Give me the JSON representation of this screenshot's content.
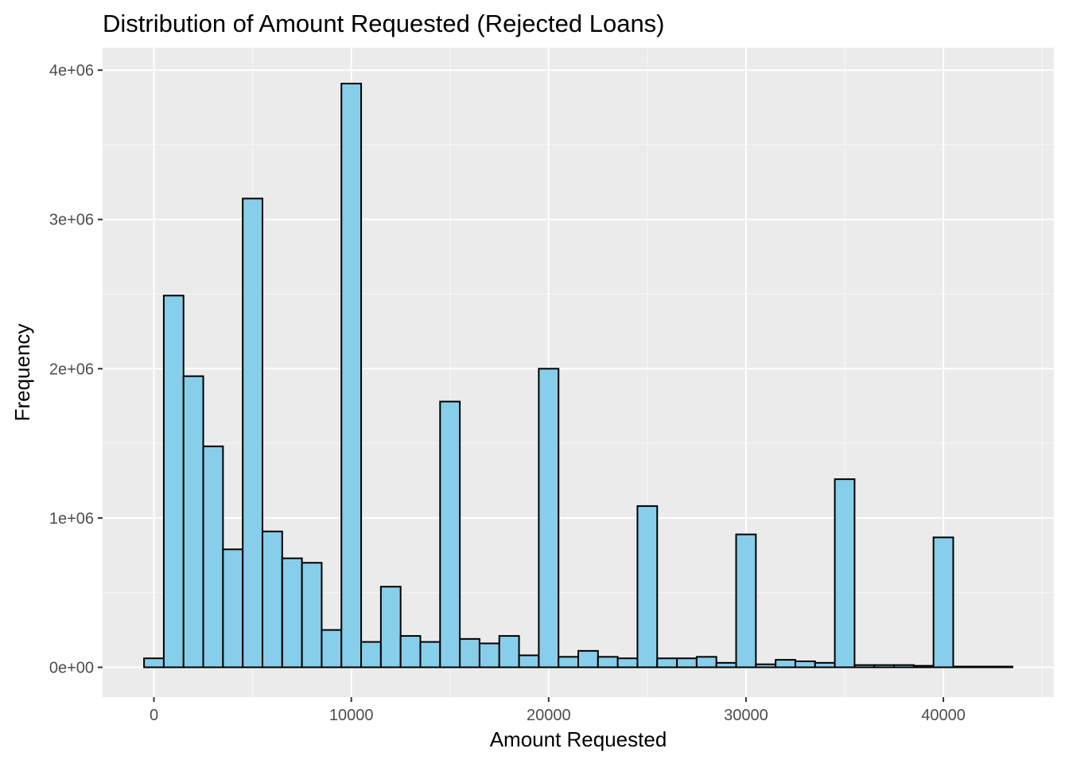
{
  "chart_data": {
    "type": "bar",
    "title": "Distribution of Amount Requested (Rejected Loans)",
    "xlabel": "Amount Requested",
    "ylabel": "Frequency",
    "xlim": [
      -2600,
      45600
    ],
    "ylim": [
      -200000,
      4150000
    ],
    "x_ticks": [
      0,
      10000,
      20000,
      30000,
      40000
    ],
    "x_tick_labels": [
      "0",
      "10000",
      "20000",
      "30000",
      "40000"
    ],
    "y_ticks": [
      0,
      1000000,
      2000000,
      3000000,
      4000000
    ],
    "y_tick_labels": [
      "0e+00",
      "1e+06",
      "2e+06",
      "3e+06",
      "4e+06"
    ],
    "grid": true,
    "legend": "none",
    "bin_width": 1000,
    "colors": {
      "fill": "#87ceeb",
      "outline": "#000000",
      "panel": "#ebebeb"
    },
    "categories": [
      0,
      1000,
      2000,
      3000,
      4000,
      5000,
      6000,
      7000,
      8000,
      9000,
      10000,
      11000,
      12000,
      13000,
      14000,
      15000,
      16000,
      17000,
      18000,
      19000,
      20000,
      21000,
      22000,
      23000,
      24000,
      25000,
      26000,
      27000,
      28000,
      29000,
      30000,
      31000,
      32000,
      33000,
      34000,
      35000,
      36000,
      37000,
      38000,
      39000,
      40000,
      41000,
      42000,
      43000
    ],
    "values": [
      60000,
      2490000,
      1950000,
      1480000,
      790000,
      3140000,
      910000,
      730000,
      700000,
      250000,
      3910000,
      170000,
      540000,
      210000,
      170000,
      1780000,
      190000,
      160000,
      210000,
      80000,
      2000000,
      70000,
      110000,
      70000,
      60000,
      1080000,
      60000,
      60000,
      70000,
      30000,
      890000,
      20000,
      50000,
      40000,
      30000,
      1260000,
      15000,
      15000,
      15000,
      10000,
      870000,
      5000,
      5000,
      5000
    ]
  }
}
